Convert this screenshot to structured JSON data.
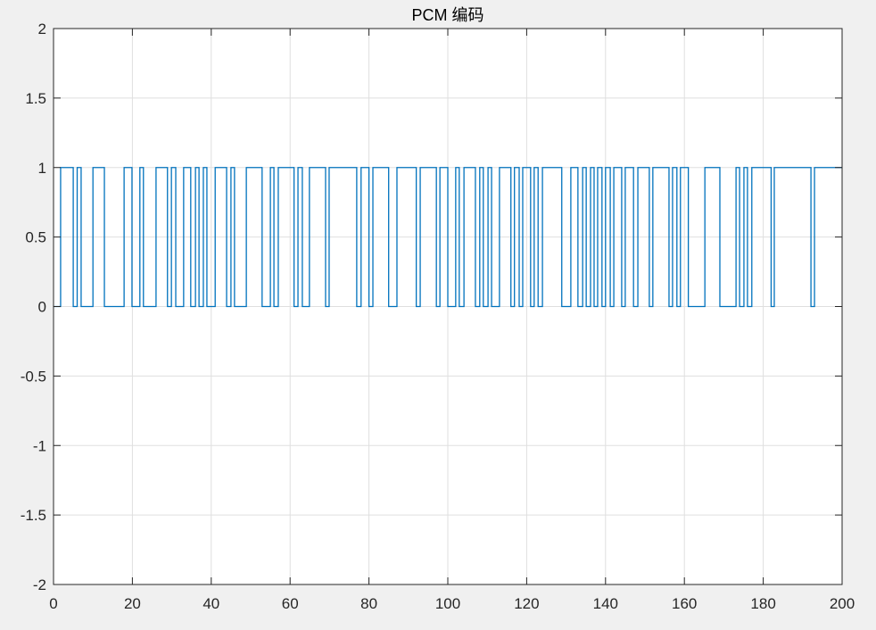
{
  "chart_data": {
    "type": "line",
    "title": "PCM 编码",
    "xlabel": "",
    "ylabel": "",
    "xlim": [
      0,
      200
    ],
    "ylim": [
      -2,
      2
    ],
    "grid": true,
    "xticks": [
      "0",
      "20",
      "40",
      "60",
      "80",
      "100",
      "120",
      "140",
      "160",
      "180",
      "200"
    ],
    "yticks": [
      "2",
      "1.5",
      "1",
      "0.5",
      "0",
      "-0.5",
      "-1",
      "-1.5",
      "-2"
    ],
    "line_color": "#0072BD",
    "step_transitions_x": [
      1.8,
      5,
      6,
      7,
      10,
      12.9,
      17.9,
      19.9,
      21.9,
      22.8,
      26,
      28.9,
      29.9,
      31,
      33,
      34.8,
      36,
      36.9,
      38,
      38.9,
      41,
      43.9,
      45,
      45.9,
      48.9,
      52.9,
      55,
      55.9,
      57,
      61,
      62,
      63.1,
      64.9,
      69,
      69.9,
      76.9,
      78,
      80,
      81,
      85,
      87.1,
      92,
      93,
      97.1,
      98,
      100,
      102,
      102.9,
      104.1,
      107,
      108.1,
      109,
      110.2,
      111.1,
      113.1,
      116,
      116.9,
      118.1,
      119,
      121,
      121.9,
      122.9,
      124,
      128.9,
      131.2,
      133,
      134.2,
      135.1,
      136.2,
      137.1,
      138,
      139.1,
      140,
      141.2,
      142.1,
      144.1,
      145,
      147.1,
      148.2,
      151.1,
      152,
      156.1,
      157,
      158.1,
      159,
      161,
      165.2,
      169,
      173.1,
      174,
      175.1,
      176,
      177.1,
      182,
      182.8,
      192.1,
      193
    ]
  }
}
